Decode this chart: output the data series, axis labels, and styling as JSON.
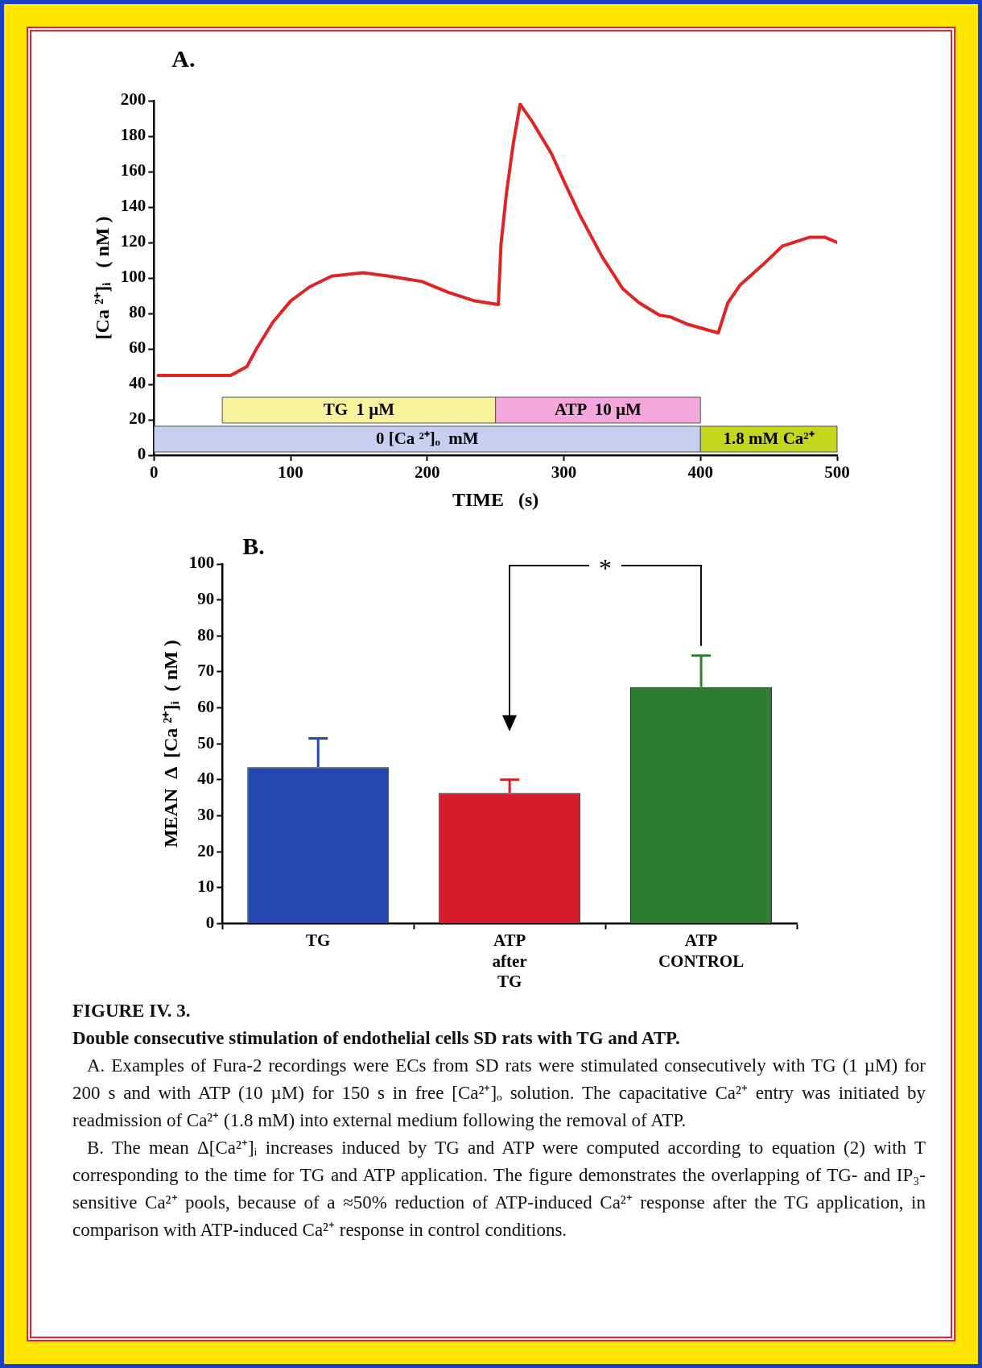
{
  "chart_data": [
    {
      "type": "line",
      "title": "A.",
      "xlabel": "TIME   (s)",
      "ylabel": "[Ca ²⁺]ᵢ   ( nM )",
      "x": [
        3,
        56,
        61,
        68,
        75,
        87,
        100,
        114,
        130,
        153,
        172,
        196,
        215,
        235,
        252,
        254,
        258,
        263,
        268,
        277,
        291,
        301,
        312,
        328,
        343,
        355,
        370,
        378,
        390,
        413,
        420,
        429,
        445,
        460,
        480,
        491,
        500
      ],
      "values": [
        45,
        45,
        47,
        50,
        60,
        75,
        87,
        95,
        101,
        103,
        101,
        98,
        92,
        87,
        85,
        119,
        148,
        176,
        198,
        188,
        170,
        153,
        135,
        112,
        94,
        86,
        79,
        78,
        74,
        69,
        86,
        96,
        107,
        118,
        123,
        123,
        120
      ],
      "color": "#e02424",
      "xlim": [
        0,
        500
      ],
      "xticks": [
        0,
        100,
        200,
        300,
        400,
        500
      ],
      "ylim": [
        0,
        200
      ],
      "yticks": [
        0,
        20,
        40,
        60,
        80,
        100,
        120,
        140,
        160,
        180,
        200
      ],
      "bands": [
        {
          "axis": "x",
          "from": 0,
          "to": 400,
          "label": "0 [Ca ²⁺]ₒ  mM",
          "color": "#c9cdf2"
        },
        {
          "axis": "x",
          "from": 400,
          "to": 500,
          "label": "1.8 mM Ca²⁺",
          "color": "#c4d61e"
        },
        {
          "axis": "x",
          "from": 50,
          "to": 250,
          "label": "TG  1 µM",
          "color": "#f8f29c"
        },
        {
          "axis": "x",
          "from": 250,
          "to": 400,
          "label": "ATP  10 µM",
          "color": "#f5a6dc"
        }
      ]
    },
    {
      "type": "bar",
      "title": "B.",
      "ylabel": "MEAN  Δ  [Ca ²⁺]ᵢ  ( nM )",
      "categories": [
        "TG",
        "ATP after TG",
        "ATP CONTROL"
      ],
      "values": [
        43.5,
        36.3,
        65.8
      ],
      "colors": [
        "#2448b0",
        "#d41c2c",
        "#2e7d32"
      ],
      "errors": [
        [
          43.5,
          51.5
        ],
        [
          36.3,
          40
        ],
        [
          65.8,
          74.5
        ]
      ],
      "ylim": [
        0,
        100
      ],
      "yticks": [
        0,
        10,
        20,
        30,
        40,
        50,
        60,
        70,
        80,
        90,
        100
      ],
      "annotations": [
        "*",
        "FIGURE IV. 3.",
        "Double consecutive stimulation of endothelial cells SD rats with TG and ATP.",
        "A.  Examples of Fura-2 recordings were ECs from SD rats were stimulated consecutively with TG (1 µM) for 200 s and with ATP (10 µM) for 150 s in free [Ca²⁺]ₒ solution.  The capacitative Ca²⁺ entry was initiated by readmission of Ca²⁺ (1.8 mM) into external medium following the removal of ATP.",
        "B.  The mean Δ[Ca²⁺]ᵢ increases induced by TG and ATP were computed according to equation (2) with T corresponding to the time for TG and ATP application.  The figure demonstrates the overlapping of TG- and IP₃-sensitive Ca²⁺ pools, because of a ≈50% reduction of ATP-induced Ca²⁺ response after the TG application, in comparison with ATP-induced Ca²⁺ response in control conditions."
      ]
    }
  ]
}
